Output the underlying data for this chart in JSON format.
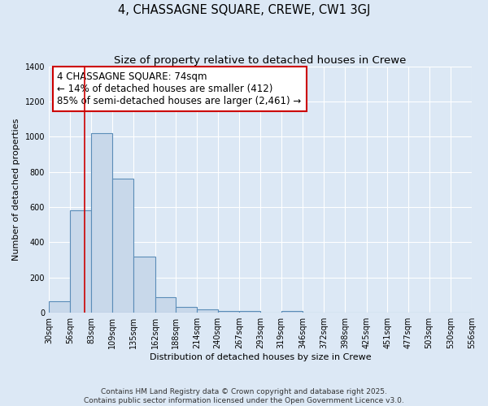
{
  "title": "4, CHASSAGNE SQUARE, CREWE, CW1 3GJ",
  "subtitle": "Size of property relative to detached houses in Crewe",
  "xlabel": "Distribution of detached houses by size in Crewe",
  "ylabel": "Number of detached properties",
  "bin_edges": [
    30,
    56,
    83,
    109,
    135,
    162,
    188,
    214,
    240,
    267,
    293,
    319,
    346,
    372,
    398,
    425,
    451,
    477,
    503,
    530,
    556
  ],
  "bar_heights": [
    65,
    580,
    1020,
    760,
    320,
    90,
    35,
    20,
    10,
    10,
    0,
    10,
    0,
    0,
    0,
    0,
    0,
    0,
    0,
    0
  ],
  "bar_color": "#c8d8ea",
  "bar_edge_color": "#5b8db8",
  "bg_color": "#dce8f5",
  "grid_color": "#ffffff",
  "red_line_x": 74,
  "annotation_text": "4 CHASSAGNE SQUARE: 74sqm\n← 14% of detached houses are smaller (412)\n85% of semi-detached houses are larger (2,461) →",
  "annotation_box_color": "#ffffff",
  "annotation_box_edge_color": "#cc0000",
  "ylim": [
    0,
    1400
  ],
  "yticks": [
    0,
    200,
    400,
    600,
    800,
    1000,
    1200,
    1400
  ],
  "footer_line1": "Contains HM Land Registry data © Crown copyright and database right 2025.",
  "footer_line2": "Contains public sector information licensed under the Open Government Licence v3.0.",
  "title_fontsize": 10.5,
  "subtitle_fontsize": 9.5,
  "axis_label_fontsize": 8,
  "tick_fontsize": 7,
  "annotation_fontsize": 8.5,
  "footer_fontsize": 6.5
}
